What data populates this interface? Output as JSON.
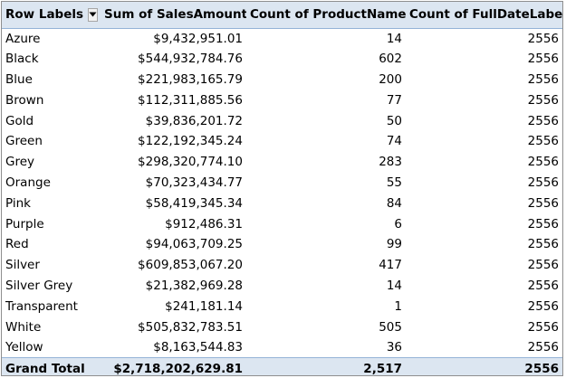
{
  "header": {
    "row_labels": "Row Labels",
    "sum_sales": "Sum of SalesAmount",
    "count_product": "Count of ProductName",
    "count_date": "Count of FullDateLabel"
  },
  "rows": [
    {
      "label": "Azure",
      "sales": "$9,432,951.01",
      "products": "14",
      "dates": "2556"
    },
    {
      "label": "Black",
      "sales": "$544,932,784.76",
      "products": "602",
      "dates": "2556"
    },
    {
      "label": "Blue",
      "sales": "$221,983,165.79",
      "products": "200",
      "dates": "2556"
    },
    {
      "label": "Brown",
      "sales": "$112,311,885.56",
      "products": "77",
      "dates": "2556"
    },
    {
      "label": "Gold",
      "sales": "$39,836,201.72",
      "products": "50",
      "dates": "2556"
    },
    {
      "label": "Green",
      "sales": "$122,192,345.24",
      "products": "74",
      "dates": "2556"
    },
    {
      "label": "Grey",
      "sales": "$298,320,774.10",
      "products": "283",
      "dates": "2556"
    },
    {
      "label": "Orange",
      "sales": "$70,323,434.77",
      "products": "55",
      "dates": "2556"
    },
    {
      "label": "Pink",
      "sales": "$58,419,345.34",
      "products": "84",
      "dates": "2556"
    },
    {
      "label": "Purple",
      "sales": "$912,486.31",
      "products": "6",
      "dates": "2556"
    },
    {
      "label": "Red",
      "sales": "$94,063,709.25",
      "products": "99",
      "dates": "2556"
    },
    {
      "label": "Silver",
      "sales": "$609,853,067.20",
      "products": "417",
      "dates": "2556"
    },
    {
      "label": "Silver Grey",
      "sales": "$21,382,969.28",
      "products": "14",
      "dates": "2556"
    },
    {
      "label": "Transparent",
      "sales": "$241,181.14",
      "products": "1",
      "dates": "2556"
    },
    {
      "label": "White",
      "sales": "$505,832,783.51",
      "products": "505",
      "dates": "2556"
    },
    {
      "label": "Yellow",
      "sales": "$8,163,544.83",
      "products": "36",
      "dates": "2556"
    }
  ],
  "total": {
    "label": "Grand Total",
    "sales": "$2,718,202,629.81",
    "products": "2,517",
    "dates": "2556"
  },
  "icons": {
    "filter_dropdown": "dropdown-arrow-icon"
  },
  "colors": {
    "header_fill": "#dce6f1",
    "header_border": "#95b3d7"
  }
}
